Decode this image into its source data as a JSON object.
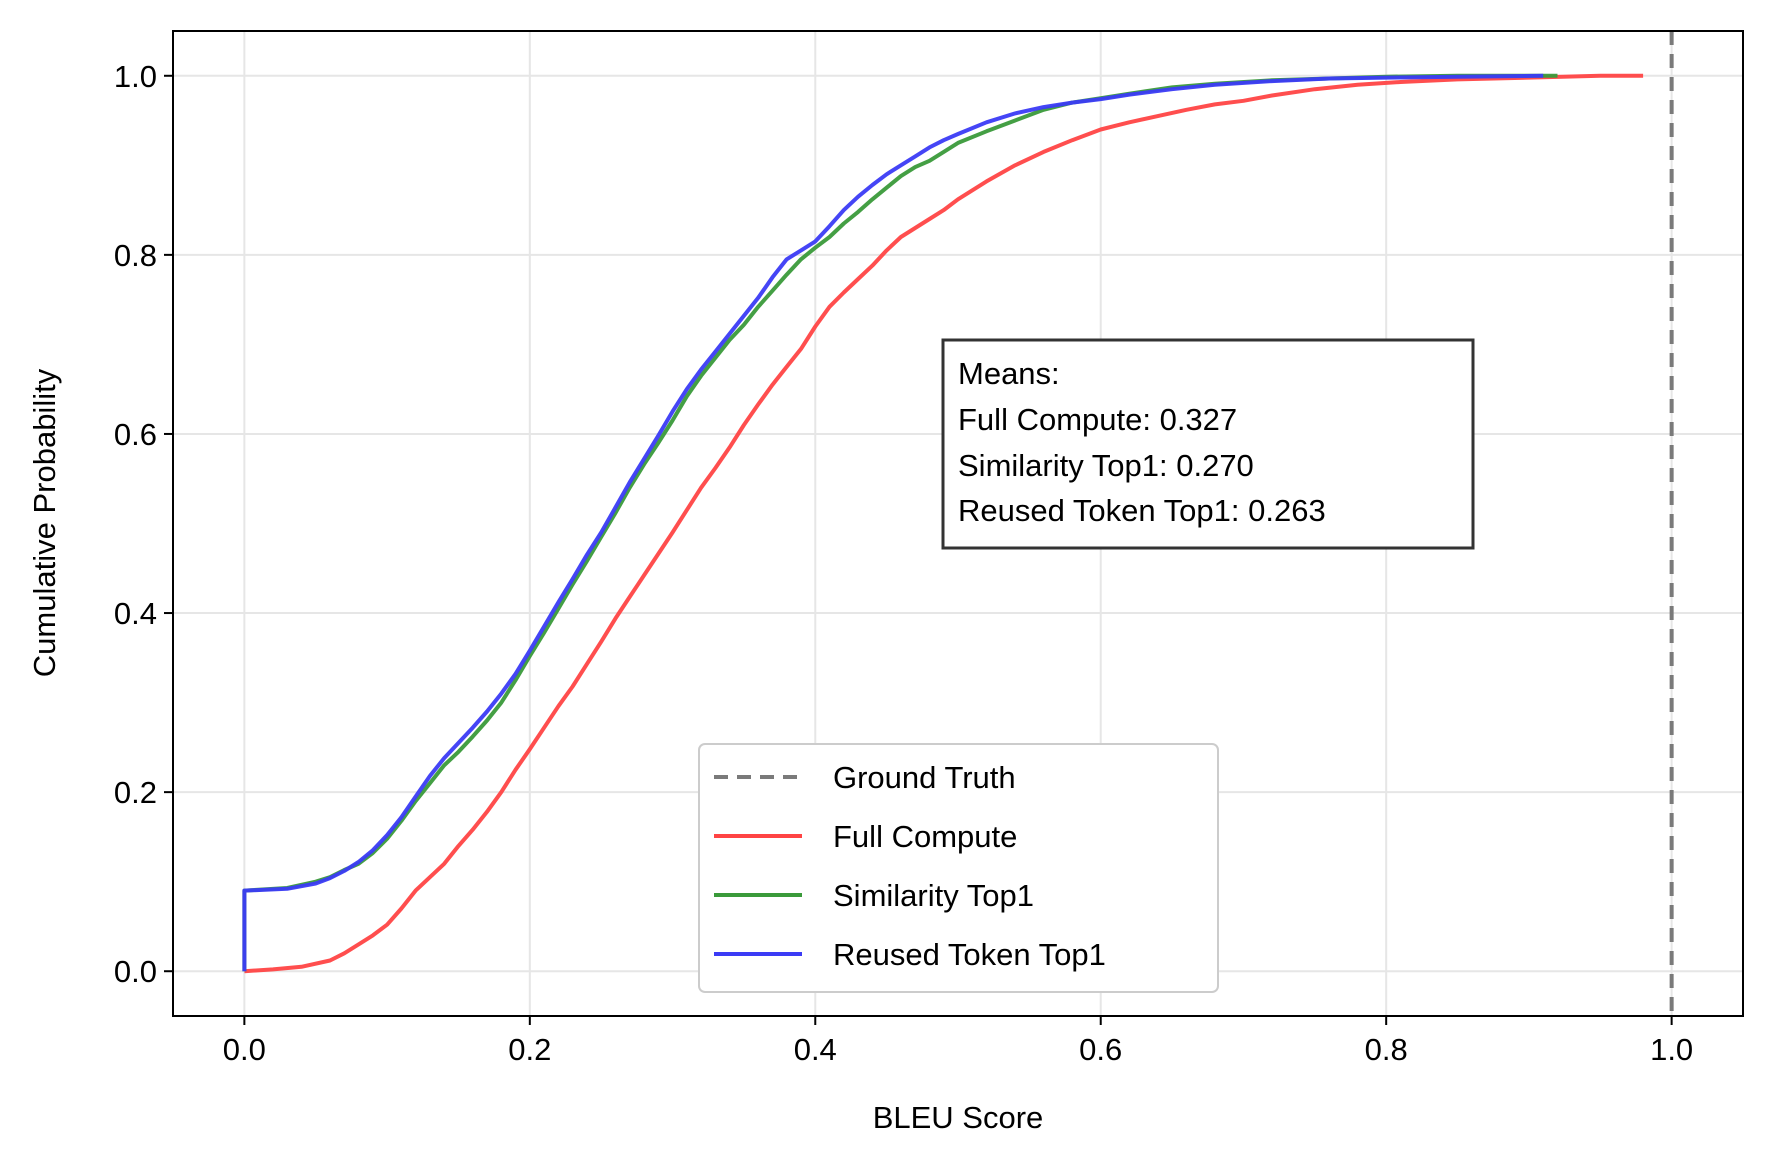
{
  "chart_data": {
    "type": "line",
    "title": "",
    "xlabel": "BLEU Score",
    "ylabel": "Cumulative Probability",
    "xlim": [
      -0.05,
      1.05
    ],
    "ylim": [
      -0.05,
      1.05
    ],
    "xticks": [
      "0.0",
      "0.2",
      "0.4",
      "0.6",
      "0.8",
      "1.0"
    ],
    "xtick_values": [
      0.0,
      0.2,
      0.4,
      0.6,
      0.8,
      1.0
    ],
    "yticks": [
      "0.0",
      "0.2",
      "0.4",
      "0.6",
      "0.8",
      "1.0"
    ],
    "ytick_values": [
      0.0,
      0.2,
      0.4,
      0.6,
      0.8,
      1.0
    ],
    "grid": true,
    "legend_position": "bottom-center",
    "ground_truth": {
      "name": "Ground Truth",
      "x": 1.0,
      "color": "#7a7a7a",
      "style": "dashed"
    },
    "series": [
      {
        "name": "Full Compute",
        "color": "#ff4444",
        "points": [
          [
            0.0,
            0.0
          ],
          [
            0.02,
            0.002
          ],
          [
            0.04,
            0.005
          ],
          [
            0.06,
            0.012
          ],
          [
            0.07,
            0.02
          ],
          [
            0.08,
            0.03
          ],
          [
            0.09,
            0.04
          ],
          [
            0.1,
            0.052
          ],
          [
            0.11,
            0.07
          ],
          [
            0.12,
            0.09
          ],
          [
            0.13,
            0.105
          ],
          [
            0.14,
            0.12
          ],
          [
            0.15,
            0.14
          ],
          [
            0.16,
            0.158
          ],
          [
            0.17,
            0.178
          ],
          [
            0.18,
            0.2
          ],
          [
            0.19,
            0.225
          ],
          [
            0.2,
            0.248
          ],
          [
            0.21,
            0.272
          ],
          [
            0.22,
            0.296
          ],
          [
            0.23,
            0.318
          ],
          [
            0.24,
            0.343
          ],
          [
            0.25,
            0.368
          ],
          [
            0.26,
            0.394
          ],
          [
            0.27,
            0.418
          ],
          [
            0.28,
            0.442
          ],
          [
            0.29,
            0.466
          ],
          [
            0.3,
            0.49
          ],
          [
            0.31,
            0.515
          ],
          [
            0.32,
            0.54
          ],
          [
            0.33,
            0.562
          ],
          [
            0.34,
            0.585
          ],
          [
            0.35,
            0.61
          ],
          [
            0.36,
            0.633
          ],
          [
            0.37,
            0.655
          ],
          [
            0.38,
            0.675
          ],
          [
            0.39,
            0.695
          ],
          [
            0.4,
            0.72
          ],
          [
            0.41,
            0.742
          ],
          [
            0.42,
            0.758
          ],
          [
            0.43,
            0.773
          ],
          [
            0.44,
            0.788
          ],
          [
            0.45,
            0.805
          ],
          [
            0.46,
            0.82
          ],
          [
            0.47,
            0.83
          ],
          [
            0.48,
            0.84
          ],
          [
            0.49,
            0.85
          ],
          [
            0.5,
            0.862
          ],
          [
            0.52,
            0.882
          ],
          [
            0.54,
            0.9
          ],
          [
            0.56,
            0.915
          ],
          [
            0.58,
            0.928
          ],
          [
            0.6,
            0.94
          ],
          [
            0.62,
            0.948
          ],
          [
            0.64,
            0.955
          ],
          [
            0.66,
            0.962
          ],
          [
            0.68,
            0.968
          ],
          [
            0.7,
            0.972
          ],
          [
            0.72,
            0.978
          ],
          [
            0.75,
            0.985
          ],
          [
            0.78,
            0.99
          ],
          [
            0.81,
            0.993
          ],
          [
            0.85,
            0.996
          ],
          [
            0.9,
            0.998
          ],
          [
            0.95,
            1.0
          ],
          [
            0.98,
            1.0
          ]
        ]
      },
      {
        "name": "Similarity Top1",
        "color": "#3a9a3a",
        "points": [
          [
            0.0,
            0.0
          ],
          [
            0.0,
            0.09
          ],
          [
            0.03,
            0.093
          ],
          [
            0.05,
            0.1
          ],
          [
            0.06,
            0.105
          ],
          [
            0.07,
            0.113
          ],
          [
            0.08,
            0.12
          ],
          [
            0.09,
            0.132
          ],
          [
            0.1,
            0.148
          ],
          [
            0.11,
            0.168
          ],
          [
            0.12,
            0.19
          ],
          [
            0.13,
            0.21
          ],
          [
            0.14,
            0.23
          ],
          [
            0.15,
            0.245
          ],
          [
            0.16,
            0.262
          ],
          [
            0.17,
            0.28
          ],
          [
            0.18,
            0.3
          ],
          [
            0.19,
            0.325
          ],
          [
            0.2,
            0.352
          ],
          [
            0.21,
            0.378
          ],
          [
            0.22,
            0.405
          ],
          [
            0.23,
            0.432
          ],
          [
            0.24,
            0.458
          ],
          [
            0.25,
            0.485
          ],
          [
            0.26,
            0.512
          ],
          [
            0.27,
            0.54
          ],
          [
            0.28,
            0.566
          ],
          [
            0.29,
            0.59
          ],
          [
            0.3,
            0.615
          ],
          [
            0.31,
            0.642
          ],
          [
            0.32,
            0.665
          ],
          [
            0.33,
            0.685
          ],
          [
            0.34,
            0.705
          ],
          [
            0.35,
            0.722
          ],
          [
            0.36,
            0.742
          ],
          [
            0.37,
            0.76
          ],
          [
            0.38,
            0.778
          ],
          [
            0.39,
            0.795
          ],
          [
            0.4,
            0.808
          ],
          [
            0.41,
            0.82
          ],
          [
            0.42,
            0.835
          ],
          [
            0.43,
            0.848
          ],
          [
            0.44,
            0.862
          ],
          [
            0.45,
            0.875
          ],
          [
            0.46,
            0.888
          ],
          [
            0.47,
            0.898
          ],
          [
            0.48,
            0.905
          ],
          [
            0.49,
            0.915
          ],
          [
            0.5,
            0.925
          ],
          [
            0.52,
            0.938
          ],
          [
            0.54,
            0.95
          ],
          [
            0.56,
            0.962
          ],
          [
            0.58,
            0.97
          ],
          [
            0.6,
            0.975
          ],
          [
            0.62,
            0.98
          ],
          [
            0.65,
            0.987
          ],
          [
            0.68,
            0.991
          ],
          [
            0.72,
            0.995
          ],
          [
            0.76,
            0.997
          ],
          [
            0.8,
            0.999
          ],
          [
            0.85,
            1.0
          ],
          [
            0.92,
            1.0
          ]
        ]
      },
      {
        "name": "Reused Token Top1",
        "color": "#3b3bf5",
        "points": [
          [
            0.0,
            0.0
          ],
          [
            0.0,
            0.09
          ],
          [
            0.03,
            0.092
          ],
          [
            0.05,
            0.098
          ],
          [
            0.06,
            0.104
          ],
          [
            0.07,
            0.112
          ],
          [
            0.08,
            0.122
          ],
          [
            0.09,
            0.135
          ],
          [
            0.1,
            0.152
          ],
          [
            0.11,
            0.172
          ],
          [
            0.12,
            0.195
          ],
          [
            0.13,
            0.218
          ],
          [
            0.14,
            0.238
          ],
          [
            0.15,
            0.255
          ],
          [
            0.16,
            0.272
          ],
          [
            0.17,
            0.29
          ],
          [
            0.18,
            0.31
          ],
          [
            0.19,
            0.332
          ],
          [
            0.2,
            0.358
          ],
          [
            0.21,
            0.385
          ],
          [
            0.22,
            0.412
          ],
          [
            0.23,
            0.438
          ],
          [
            0.24,
            0.465
          ],
          [
            0.25,
            0.49
          ],
          [
            0.26,
            0.518
          ],
          [
            0.27,
            0.546
          ],
          [
            0.28,
            0.572
          ],
          [
            0.29,
            0.598
          ],
          [
            0.3,
            0.625
          ],
          [
            0.31,
            0.65
          ],
          [
            0.32,
            0.672
          ],
          [
            0.33,
            0.692
          ],
          [
            0.34,
            0.712
          ],
          [
            0.35,
            0.732
          ],
          [
            0.36,
            0.752
          ],
          [
            0.37,
            0.775
          ],
          [
            0.38,
            0.795
          ],
          [
            0.39,
            0.805
          ],
          [
            0.4,
            0.815
          ],
          [
            0.41,
            0.832
          ],
          [
            0.42,
            0.85
          ],
          [
            0.43,
            0.865
          ],
          [
            0.44,
            0.878
          ],
          [
            0.45,
            0.89
          ],
          [
            0.46,
            0.9
          ],
          [
            0.47,
            0.91
          ],
          [
            0.48,
            0.92
          ],
          [
            0.49,
            0.928
          ],
          [
            0.5,
            0.935
          ],
          [
            0.52,
            0.948
          ],
          [
            0.54,
            0.958
          ],
          [
            0.56,
            0.965
          ],
          [
            0.58,
            0.97
          ],
          [
            0.6,
            0.974
          ],
          [
            0.62,
            0.979
          ],
          [
            0.65,
            0.985
          ],
          [
            0.68,
            0.99
          ],
          [
            0.72,
            0.994
          ],
          [
            0.76,
            0.997
          ],
          [
            0.8,
            0.998
          ],
          [
            0.85,
            0.999
          ],
          [
            0.91,
            1.0
          ]
        ]
      }
    ],
    "annotation": {
      "lines": [
        "Means:",
        "Full Compute: 0.327",
        "Similarity Top1: 0.270",
        "Reused Token Top1: 0.263"
      ]
    }
  }
}
